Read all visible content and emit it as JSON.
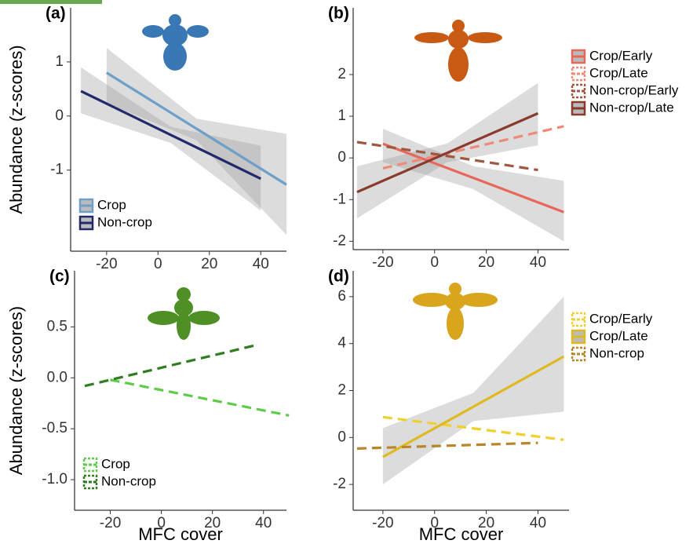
{
  "chart_data": [
    {
      "type": "line",
      "label": "(a)",
      "ylabel": "Abundance (z-scores)",
      "xlim": [
        -34,
        50
      ],
      "ylim": [
        -2.5,
        2
      ],
      "xticks": [
        -20,
        0,
        20,
        40
      ],
      "yticks": [
        -1,
        0,
        1
      ],
      "legend": "bottom-left",
      "series": [
        {
          "name": "Crop",
          "color": "#6e9fc9",
          "dash": false,
          "x": [
            -20,
            15,
            50
          ],
          "values": [
            0.8,
            -0.235,
            -1.27
          ],
          "lower": [
            0.24,
            -0.45,
            -2.2
          ],
          "upper": [
            1.26,
            -0.05,
            -0.33
          ]
        },
        {
          "name": "Non-crop",
          "color": "#232a6b",
          "dash": false,
          "x": [
            -30,
            5,
            40
          ],
          "values": [
            0.46,
            -0.35,
            -1.16
          ],
          "lower": [
            0.05,
            -0.5,
            -1.75
          ],
          "upper": [
            0.9,
            -0.2,
            -0.55
          ]
        }
      ]
    },
    {
      "type": "line",
      "label": "(b)",
      "xlim": [
        -31.5,
        52
      ],
      "ylim": [
        -2.2,
        3.6
      ],
      "xticks": [
        -20,
        0,
        20,
        40
      ],
      "yticks": [
        -2,
        -1,
        0,
        1,
        2
      ],
      "legend": "right",
      "series": [
        {
          "name": "Crop/Early",
          "color": "#e8675a",
          "dash": false,
          "x": [
            -20,
            15,
            50
          ],
          "values": [
            0.34,
            -0.48,
            -1.3
          ],
          "lower": [
            -0.1,
            -0.75,
            -2.0
          ],
          "upper": [
            0.7,
            -0.2,
            -0.55
          ]
        },
        {
          "name": "Crop/Late",
          "color": "#f08a78",
          "dash": true,
          "x": [
            -20,
            50
          ],
          "values": [
            -0.25,
            0.76
          ]
        },
        {
          "name": "Non-crop/Early",
          "color": "#a0573f",
          "dash": true,
          "x": [
            -30,
            40
          ],
          "values": [
            0.38,
            -0.29
          ]
        },
        {
          "name": "Non-crop/Late",
          "color": "#8b3a2e",
          "dash": false,
          "x": [
            -30,
            5,
            40
          ],
          "values": [
            -0.82,
            0.125,
            1.07
          ],
          "lower": [
            -1.45,
            -0.1,
            0.3
          ],
          "upper": [
            -0.2,
            0.35,
            1.8
          ]
        }
      ]
    },
    {
      "type": "line",
      "label": "(c)",
      "ylabel": "Abundance (z-scores)",
      "xlabel": "MFC cover",
      "xlim": [
        -34,
        49
      ],
      "ylim": [
        -1.3,
        1.05
      ],
      "xticks": [
        -20,
        0,
        20,
        40
      ],
      "yticks": [
        {
          "value": -1,
          "label": "-1.0"
        },
        -0.5,
        {
          "value": 0,
          "label": "0.0"
        },
        0.5
      ],
      "legend": "bottom-left",
      "series": [
        {
          "name": "Crop",
          "color": "#5ecb4a",
          "dash": true,
          "x": [
            -20,
            50
          ],
          "values": [
            -0.02,
            -0.37
          ]
        },
        {
          "name": "Non-crop",
          "color": "#2e7d1f",
          "dash": true,
          "x": [
            -30,
            37
          ],
          "values": [
            -0.08,
            0.32
          ]
        }
      ]
    },
    {
      "type": "line",
      "label": "(d)",
      "xlabel": "MFC cover",
      "xlim": [
        -31.5,
        52
      ],
      "ylim": [
        -3.1,
        7.1
      ],
      "xticks": [
        -20,
        0,
        20,
        40
      ],
      "yticks": [
        -2,
        0,
        2,
        4,
        6
      ],
      "legend": "right",
      "series": [
        {
          "name": "Crop/Early",
          "color": "#f0d030",
          "dash": true,
          "x": [
            -20,
            50
          ],
          "values": [
            0.87,
            -0.1
          ]
        },
        {
          "name": "Crop/Late",
          "color": "#e0b820",
          "dash": false,
          "x": [
            -20,
            15,
            50
          ],
          "values": [
            -0.83,
            1.31,
            3.45
          ],
          "lower": [
            -2.0,
            0.7,
            1.1
          ],
          "upper": [
            0.4,
            1.9,
            6.0
          ]
        },
        {
          "name": "Non-crop",
          "color": "#b8862a",
          "dash": true,
          "x": [
            -30,
            40
          ],
          "values": [
            -0.47,
            -0.23
          ]
        }
      ]
    }
  ]
}
